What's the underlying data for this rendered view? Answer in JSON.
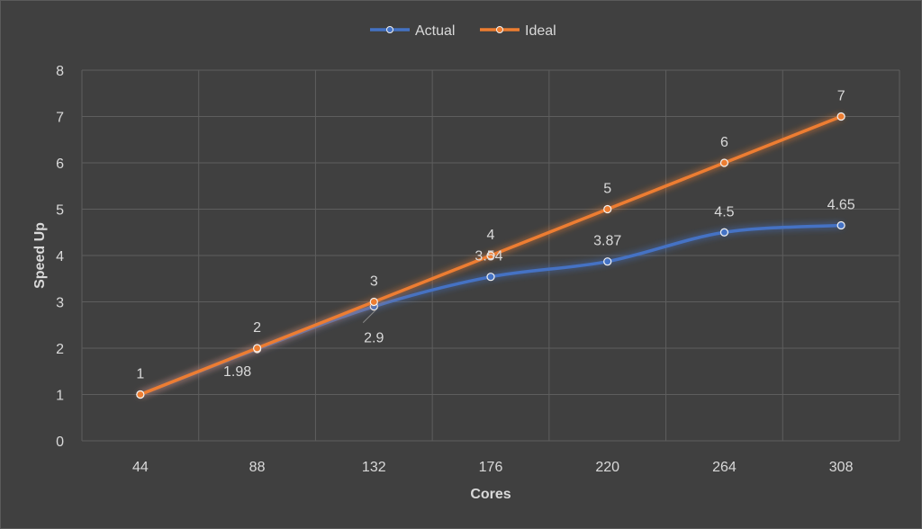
{
  "chart_data": {
    "type": "line",
    "title": "",
    "xlabel": "Cores",
    "ylabel": "Speed Up",
    "categories": [
      "44",
      "88",
      "132",
      "176",
      "220",
      "264",
      "308"
    ],
    "ylim": [
      0,
      8
    ],
    "yticks": [
      "0",
      "1",
      "2",
      "3",
      "4",
      "5",
      "6",
      "7",
      "8"
    ],
    "grid": true,
    "legend_position": "top-center",
    "series": [
      {
        "name": "Actual",
        "color": "#4472c4",
        "smooth": true,
        "values": [
          1,
          1.98,
          2.9,
          3.54,
          3.87,
          4.5,
          4.65
        ],
        "labels": [
          "",
          "1.98",
          "2.9",
          "3.54",
          "3.87",
          "4.5",
          "4.65"
        ]
      },
      {
        "name": "Ideal",
        "color": "#ed7d31",
        "smooth": false,
        "values": [
          1,
          2,
          3,
          4,
          5,
          6,
          7
        ],
        "labels": [
          "1",
          "2",
          "3",
          "4",
          "5",
          "6",
          "7"
        ]
      }
    ]
  }
}
